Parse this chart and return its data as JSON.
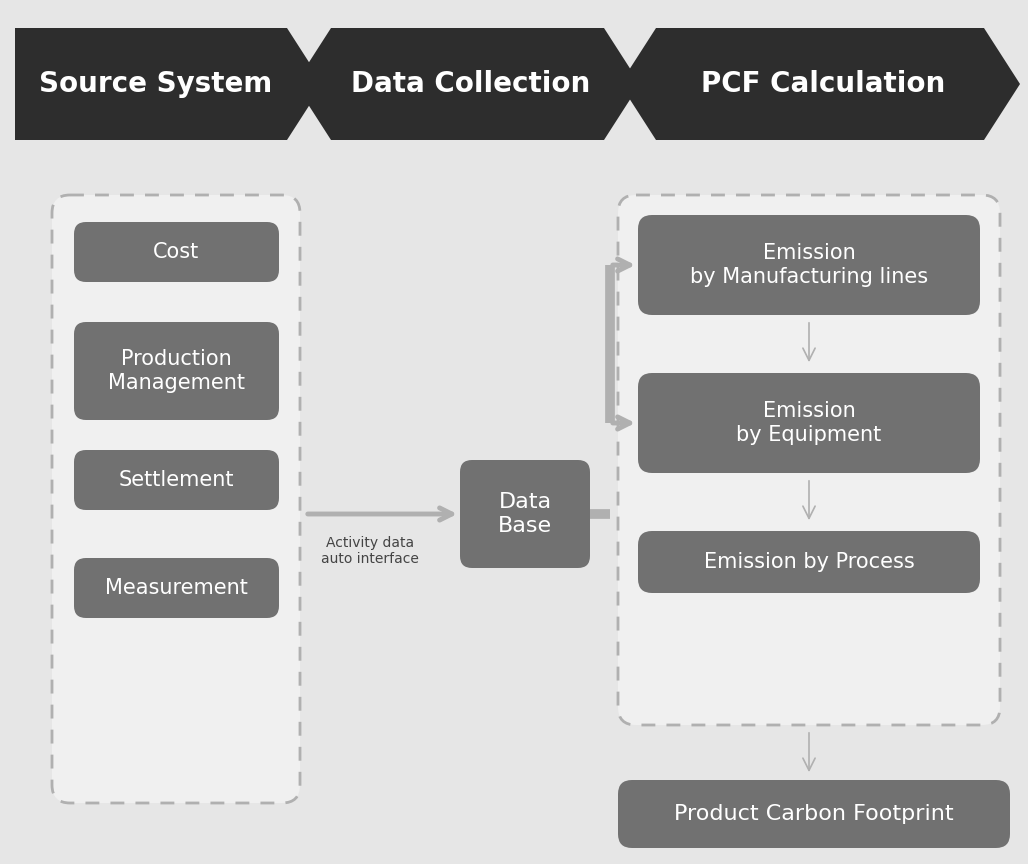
{
  "bg_color": "#e6e6e6",
  "header_color": "#2d2d2d",
  "header_text_color": "#ffffff",
  "header_labels": [
    "Source System",
    "Data Collection",
    "PCF Calculation"
  ],
  "box_color": "#717171",
  "box_text_color": "#ffffff",
  "source_boxes": [
    "Cost",
    "Production\nManagement",
    "Settlement",
    "Measurement"
  ],
  "db_box": "Data\nBase",
  "right_boxes": [
    "Emission\nby Manufacturing lines",
    "Emission\nby Equipment",
    "Emission by Process"
  ],
  "bottom_box": "Product Carbon Footprint",
  "arrow_label": "Activity data\nauto interface",
  "arrow_color": "#b0b0b0",
  "dashed_border_color": "#b0b0b0",
  "dashed_fill_color": "#f0f0f0",
  "fig_width": 10.28,
  "fig_height": 8.64
}
